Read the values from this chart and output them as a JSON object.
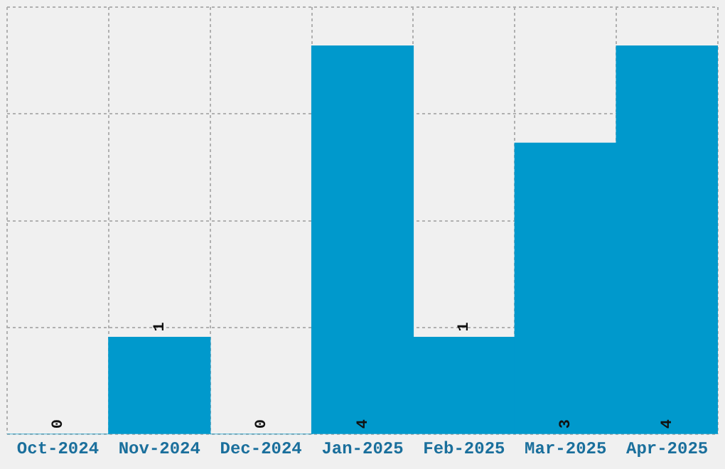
{
  "chart_data": {
    "type": "bar",
    "categories": [
      "Oct-2024",
      "Nov-2024",
      "Dec-2024",
      "Jan-2025",
      "Feb-2025",
      "Mar-2025",
      "Apr-2025"
    ],
    "values": [
      0,
      1,
      0,
      4,
      1,
      3,
      4
    ],
    "color": "#0099cc",
    "data_labels": true,
    "grid": true,
    "tick_labels": "x",
    "ylim": [
      0,
      4.4
    ],
    "yticks": [
      {
        "value": 0,
        "label": null
      },
      {
        "value": 1.1,
        "label": null
      },
      {
        "value": 2.2,
        "label": null
      },
      {
        "value": 3.3,
        "label": null
      },
      {
        "value": 4.4,
        "label": null
      }
    ]
  }
}
